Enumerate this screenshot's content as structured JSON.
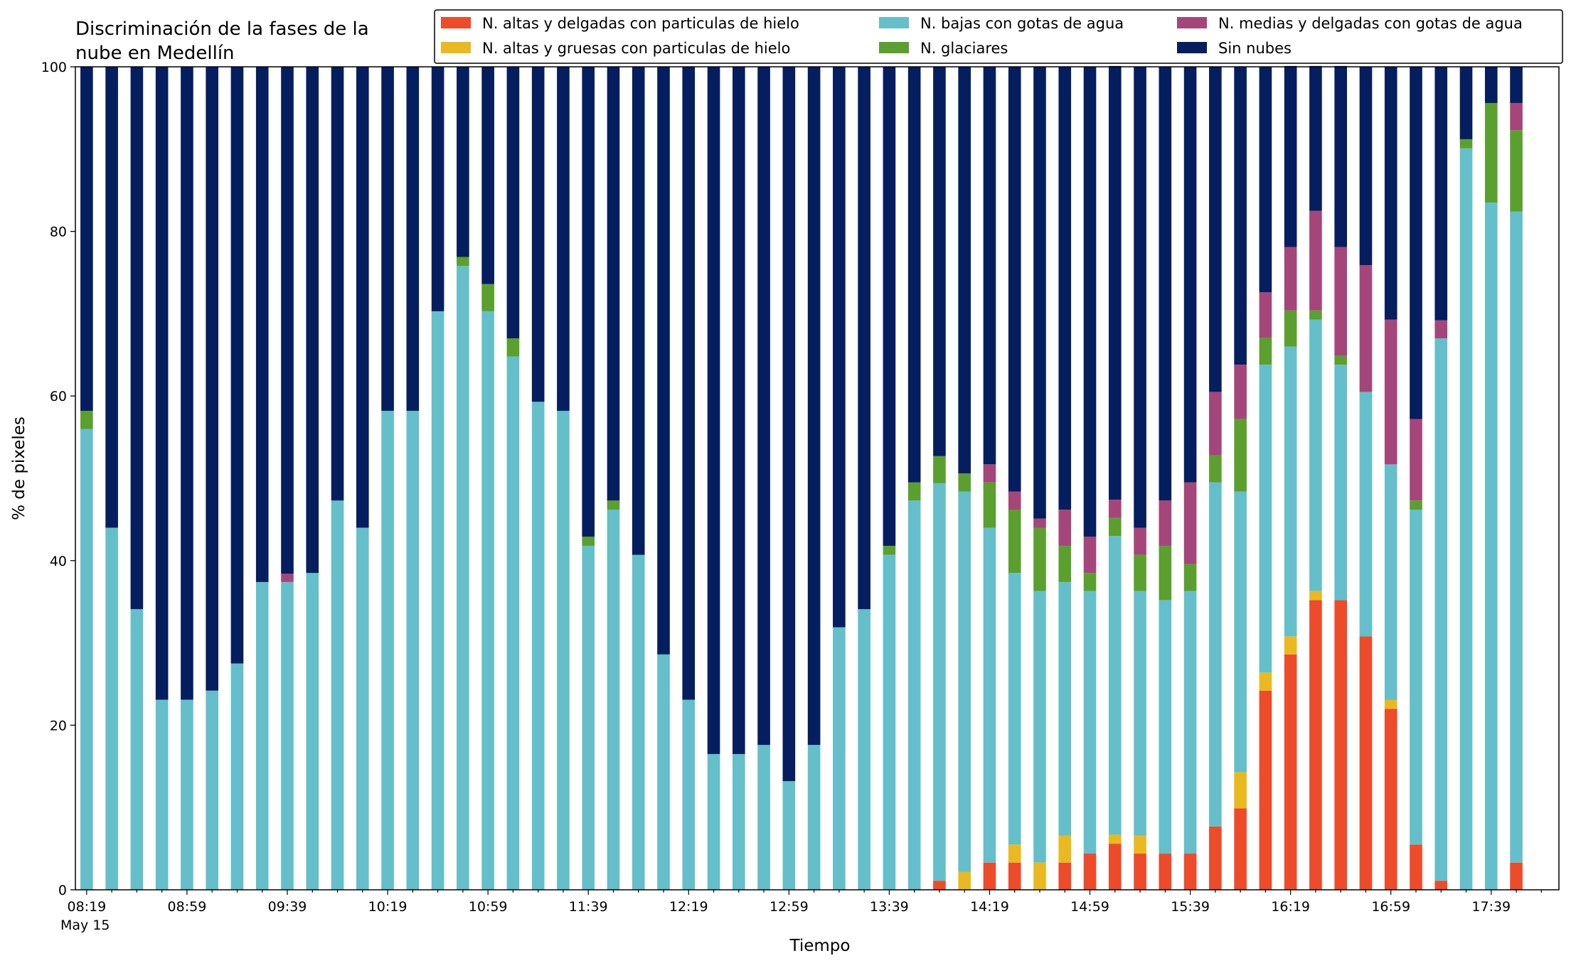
{
  "chart_data": {
    "type": "bar",
    "stacked": true,
    "title": "Discriminación de la fases de la nube en Medellín",
    "title_lines": [
      "Discriminación de la fases de la",
      "nube en Medellín"
    ],
    "xlabel": "Tiempo",
    "ylabel": "% de pixeles",
    "ylim": [
      0,
      100
    ],
    "yticks": [
      0,
      20,
      40,
      60,
      80,
      100
    ],
    "x_start": "08:19",
    "x_step_minutes": 10,
    "x_date_label": "May 15",
    "xtick_labels": [
      "08:19",
      "08:59",
      "09:39",
      "10:19",
      "10:59",
      "11:39",
      "12:19",
      "12:59",
      "13:39",
      "14:19",
      "14:59",
      "15:39",
      "16:19",
      "16:59",
      "17:39"
    ],
    "categories": [
      "08:19",
      "08:29",
      "08:39",
      "08:49",
      "08:59",
      "09:09",
      "09:19",
      "09:29",
      "09:39",
      "09:49",
      "09:59",
      "10:09",
      "10:19",
      "10:29",
      "10:39",
      "10:49",
      "10:59",
      "11:09",
      "11:19",
      "11:29",
      "11:39",
      "11:49",
      "11:59",
      "12:09",
      "12:19",
      "12:29",
      "12:39",
      "12:49",
      "12:59",
      "13:09",
      "13:19",
      "13:29",
      "13:39",
      "13:49",
      "13:59",
      "14:09",
      "14:19",
      "14:29",
      "14:39",
      "14:49",
      "14:59",
      "15:09",
      "15:19",
      "15:29",
      "15:39",
      "15:49",
      "15:59",
      "16:09",
      "16:19",
      "16:29",
      "16:39",
      "16:49",
      "16:59",
      "17:09",
      "17:19",
      "17:29",
      "17:39",
      "17:49"
    ],
    "legend_position": "top",
    "legend_columns": 3,
    "series": [
      {
        "name": "N. altas y delgadas con particulas de hielo",
        "color": "#ee4b2b",
        "values": [
          0,
          0,
          0,
          0,
          0,
          0,
          0,
          0,
          0,
          0,
          0,
          0,
          0,
          0,
          0,
          0,
          0,
          0,
          0,
          0,
          0,
          0,
          0,
          0,
          0,
          0,
          0,
          0,
          0,
          0,
          0,
          0,
          0,
          0,
          1.1,
          0,
          3.3,
          3.3,
          0,
          3.3,
          4.4,
          5.6,
          4.4,
          4.4,
          4.4,
          7.7,
          9.9,
          24.2,
          28.6,
          35.2,
          35.2,
          30.8,
          22.0,
          5.5,
          1.1,
          0,
          0,
          3.3
        ]
      },
      {
        "name": "N. altas y gruesas con particulas de hielo",
        "color": "#e9b91f",
        "values": [
          0,
          0,
          0,
          0,
          0,
          0,
          0,
          0,
          0,
          0,
          0,
          0,
          0,
          0,
          0,
          0,
          0,
          0,
          0,
          0,
          0,
          0,
          0,
          0,
          0,
          0,
          0,
          0,
          0,
          0,
          0,
          0,
          0,
          0,
          0,
          2.2,
          0,
          2.2,
          3.3,
          3.3,
          0,
          1.1,
          2.2,
          0,
          0,
          0,
          4.4,
          2.2,
          2.2,
          1.1,
          0,
          0,
          1.1,
          0,
          0,
          0,
          0,
          0
        ]
      },
      {
        "name": "N. bajas con gotas de agua",
        "color": "#64bfca",
        "values": [
          56.0,
          44.0,
          34.1,
          23.1,
          23.1,
          24.2,
          27.5,
          37.4,
          37.4,
          38.5,
          47.3,
          44.0,
          58.2,
          58.2,
          70.3,
          75.8,
          70.3,
          64.8,
          59.3,
          58.2,
          41.8,
          46.2,
          40.7,
          28.6,
          23.1,
          16.5,
          16.5,
          17.6,
          13.2,
          17.6,
          31.9,
          34.1,
          40.7,
          47.3,
          48.3,
          46.2,
          40.7,
          33.0,
          33.0,
          30.8,
          31.9,
          36.3,
          29.7,
          30.8,
          31.9,
          41.8,
          34.1,
          37.4,
          35.2,
          33.0,
          28.6,
          29.7,
          28.6,
          40.7,
          65.9,
          90.1,
          83.5,
          79.1
        ]
      },
      {
        "name": "N. glaciares",
        "color": "#5ba02e",
        "values": [
          2.2,
          0,
          0,
          0,
          0,
          0,
          0,
          0,
          0,
          0,
          0,
          0,
          0,
          0,
          0,
          1.1,
          3.3,
          2.2,
          0,
          0,
          1.1,
          1.1,
          0,
          0,
          0,
          0,
          0,
          0,
          0,
          0,
          0,
          0,
          1.1,
          2.2,
          3.3,
          2.2,
          5.5,
          7.7,
          7.7,
          4.4,
          2.2,
          2.2,
          4.4,
          6.6,
          3.3,
          3.3,
          8.8,
          3.3,
          4.4,
          1.1,
          1.1,
          0,
          0,
          1.1,
          0,
          1.1,
          12.1,
          9.9
        ]
      },
      {
        "name": "N. medias y delgadas con gotas de agua",
        "color": "#a5467a",
        "values": [
          0,
          0,
          0,
          0,
          0,
          0,
          0,
          0,
          1.0,
          0,
          0,
          0,
          0,
          0,
          0,
          0,
          0,
          0,
          0,
          0,
          0,
          0,
          0,
          0,
          0,
          0,
          0,
          0,
          0,
          0,
          0,
          0,
          0,
          0,
          0,
          0,
          2.2,
          2.2,
          1.1,
          4.4,
          4.4,
          2.2,
          3.3,
          5.5,
          9.9,
          7.7,
          6.6,
          5.5,
          7.7,
          12.1,
          13.2,
          15.4,
          17.6,
          9.9,
          2.2,
          0,
          0,
          3.3
        ]
      },
      {
        "name": "Sin nubes",
        "color": "#041e5f",
        "values": [
          41.8,
          56.0,
          65.9,
          76.9,
          76.9,
          75.8,
          72.5,
          62.6,
          61.6,
          61.5,
          52.7,
          56.0,
          41.8,
          41.8,
          29.7,
          23.1,
          26.4,
          33.0,
          40.7,
          41.8,
          57.1,
          52.7,
          59.3,
          71.4,
          76.9,
          83.5,
          83.5,
          82.4,
          86.8,
          82.4,
          68.1,
          65.9,
          58.2,
          50.5,
          47.3,
          49.4,
          48.3,
          51.6,
          54.9,
          53.8,
          57.1,
          52.7,
          56.0,
          52.7,
          50.5,
          39.5,
          36.2,
          27.4,
          22.0,
          17.6,
          22.0,
          24.1,
          30.7,
          42.8,
          30.8,
          8.8,
          4.4,
          4.4
        ]
      }
    ]
  }
}
